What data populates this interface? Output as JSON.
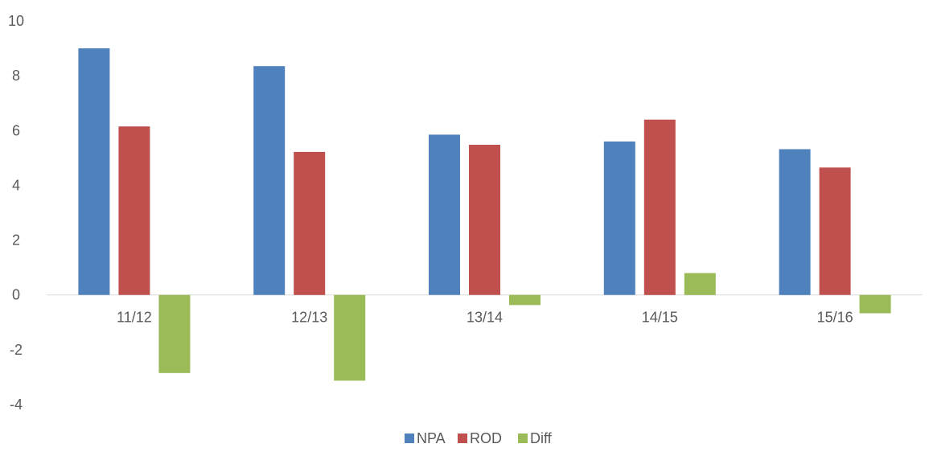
{
  "chart_data": {
    "type": "bar",
    "categories": [
      "11/12",
      "12/13",
      "13/14",
      "14/15",
      "15/16"
    ],
    "series": [
      {
        "name": "NPA",
        "color": "#4f81bd",
        "values": [
          9.0,
          8.35,
          5.85,
          5.6,
          5.32
        ]
      },
      {
        "name": "ROD",
        "color": "#c0504d",
        "values": [
          6.15,
          5.22,
          5.48,
          6.4,
          4.65
        ]
      },
      {
        "name": "Diff",
        "color": "#9bbb59",
        "values": [
          -2.85,
          -3.13,
          -0.37,
          0.8,
          -0.67
        ]
      }
    ],
    "ylim": [
      -4,
      10
    ],
    "yticks": [
      "10",
      "8",
      "6",
      "4",
      "2",
      "0",
      "-2",
      "-4"
    ],
    "ytick_values": [
      10,
      8,
      6,
      4,
      2,
      0,
      -2,
      -4
    ],
    "grid": false,
    "legend_position": "bottom",
    "title": "",
    "xlabel": "",
    "ylabel": ""
  }
}
